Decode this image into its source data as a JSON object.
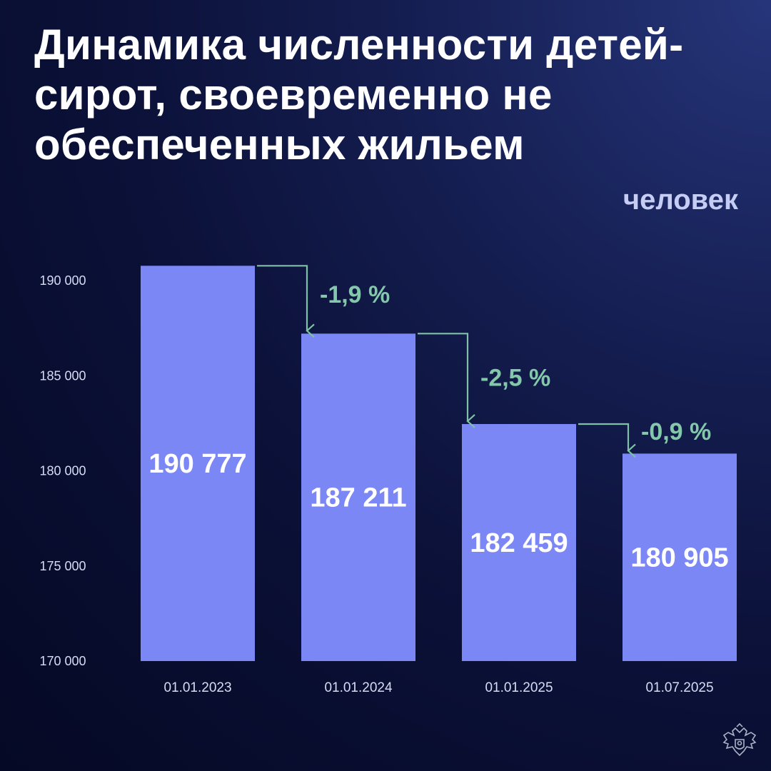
{
  "title": "Динамика численности детей-сирот, своевременно не обеспеченных жильем",
  "unit": "человек",
  "colors": {
    "bar": "#7b87f5",
    "arrow": "#7fc1a6",
    "change_text": "#84c8ab",
    "axis_text": "#d7dcf5"
  },
  "chart_data": {
    "type": "bar",
    "title": "Динамика численности детей-сирот, своевременно не обеспеченных жильем",
    "ylabel": "человек",
    "xlabel": "",
    "categories": [
      "01.01.2023",
      "01.01.2024",
      "01.01.2025",
      "01.07.2025"
    ],
    "values": [
      190777,
      187211,
      182459,
      180905
    ],
    "value_labels": [
      "190 777",
      "187 211",
      "182 459",
      "180 905"
    ],
    "ylim": [
      170000,
      190777
    ],
    "yticks": [
      170000,
      175000,
      180000,
      185000,
      190000
    ],
    "ytick_labels": [
      "170 000",
      "175 000",
      "180 000",
      "185 000",
      "190 000"
    ],
    "changes": [
      "-1,9 %",
      "-2,5 %",
      "-0,9 %"
    ],
    "grid": false,
    "legend": "none"
  },
  "emblem_icon": "double-headed-eagle-icon"
}
